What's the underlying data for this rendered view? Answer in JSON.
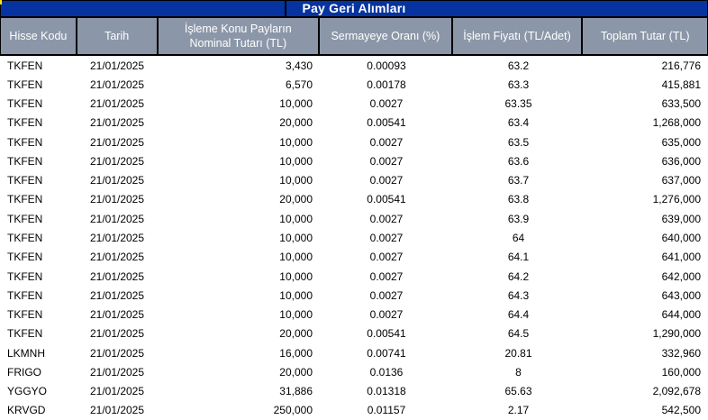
{
  "title": "Pay Geri Alımları",
  "columns": [
    {
      "id": "hisse-kodu",
      "lines": [
        "Hisse Kodu"
      ],
      "align": "left"
    },
    {
      "id": "tarih",
      "lines": [
        "Tarih"
      ],
      "align": "center"
    },
    {
      "id": "nominal-tutar",
      "lines": [
        "İşleme Konu Payların",
        "Nominal Tutarı (TL)"
      ],
      "align": "right"
    },
    {
      "id": "sermayeye-orani",
      "lines": [
        "Sermayeye Oranı (%)"
      ],
      "align": "center"
    },
    {
      "id": "islem-fiyati",
      "lines": [
        "İşlem Fiyatı (TL/Adet)"
      ],
      "align": "center"
    },
    {
      "id": "toplam-tutar",
      "lines": [
        "Toplam Tutar (TL)"
      ],
      "align": "right"
    }
  ],
  "rows": [
    [
      "TKFEN",
      "21/01/2025",
      "3,430",
      "0.00093",
      "63.2",
      "216,776"
    ],
    [
      "TKFEN",
      "21/01/2025",
      "6,570",
      "0.00178",
      "63.3",
      "415,881"
    ],
    [
      "TKFEN",
      "21/01/2025",
      "10,000",
      "0.0027",
      "63.35",
      "633,500"
    ],
    [
      "TKFEN",
      "21/01/2025",
      "20,000",
      "0.00541",
      "63.4",
      "1,268,000"
    ],
    [
      "TKFEN",
      "21/01/2025",
      "10,000",
      "0.0027",
      "63.5",
      "635,000"
    ],
    [
      "TKFEN",
      "21/01/2025",
      "10,000",
      "0.0027",
      "63.6",
      "636,000"
    ],
    [
      "TKFEN",
      "21/01/2025",
      "10,000",
      "0.0027",
      "63.7",
      "637,000"
    ],
    [
      "TKFEN",
      "21/01/2025",
      "20,000",
      "0.00541",
      "63.8",
      "1,276,000"
    ],
    [
      "TKFEN",
      "21/01/2025",
      "10,000",
      "0.0027",
      "63.9",
      "639,000"
    ],
    [
      "TKFEN",
      "21/01/2025",
      "10,000",
      "0.0027",
      "64",
      "640,000"
    ],
    [
      "TKFEN",
      "21/01/2025",
      "10,000",
      "0.0027",
      "64.1",
      "641,000"
    ],
    [
      "TKFEN",
      "21/01/2025",
      "10,000",
      "0.0027",
      "64.2",
      "642,000"
    ],
    [
      "TKFEN",
      "21/01/2025",
      "10,000",
      "0.0027",
      "64.3",
      "643,000"
    ],
    [
      "TKFEN",
      "21/01/2025",
      "10,000",
      "0.0027",
      "64.4",
      "644,000"
    ],
    [
      "TKFEN",
      "21/01/2025",
      "20,000",
      "0.00541",
      "64.5",
      "1,290,000"
    ],
    [
      "LKMNH",
      "21/01/2025",
      "16,000",
      "0.00741",
      "20.81",
      "332,960"
    ],
    [
      "FRIGO",
      "21/01/2025",
      "20,000",
      "0.0136",
      "8",
      "160,000"
    ],
    [
      "YGGYO",
      "21/01/2025",
      "31,886",
      "0.01318",
      "65.63",
      "2,092,678"
    ],
    [
      "KRVGD",
      "21/01/2025",
      "250,000",
      "0.01157",
      "2.17",
      "542,500"
    ]
  ],
  "colors": {
    "title_bg": "#0633A0",
    "header_bg": "#8B97A8",
    "header_text": "#FFFFFF",
    "body_text": "#000000",
    "body_bg": "#FFFFFF",
    "border": "#000000"
  }
}
